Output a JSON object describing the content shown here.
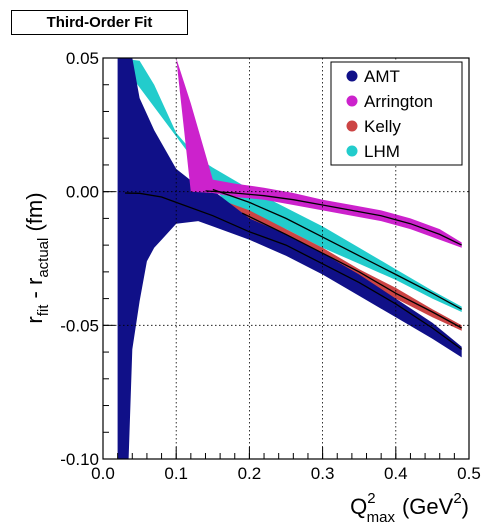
{
  "chart_data": {
    "type": "line",
    "title": "Third-Order Fit",
    "xlabel": {
      "main": "Q",
      "sup": "2",
      "sub": "max",
      "unit": "(GeV",
      "unit_sup": "2",
      "unit_close": ")"
    },
    "ylabel": {
      "r": "r",
      "sub1": "fit",
      "mid": " - r",
      "sub2": "actual",
      "unit": " (fm)"
    },
    "xlim": [
      0,
      0.5
    ],
    "ylim": [
      -0.1,
      0.05
    ],
    "xticks": [
      {
        "v": 0.0,
        "label": "0.0"
      },
      {
        "v": 0.1,
        "label": "0.1"
      },
      {
        "v": 0.2,
        "label": "0.2"
      },
      {
        "v": 0.3,
        "label": "0.3"
      },
      {
        "v": 0.4,
        "label": "0.4"
      },
      {
        "v": 0.5,
        "label": "0.5"
      }
    ],
    "yticks": [
      {
        "v": -0.1,
        "label": "-0.10"
      },
      {
        "v": -0.05,
        "label": "-0.05"
      },
      {
        "v": 0.0,
        "label": "0.00"
      },
      {
        "v": 0.05,
        "label": "0.05"
      }
    ],
    "grid": true,
    "legend_position": "top-right",
    "series": [
      {
        "name": "LHM",
        "color": "#22cccc",
        "center": [
          [
            0.15,
            0.0008
          ],
          [
            0.2,
            -0.004
          ],
          [
            0.25,
            -0.01
          ],
          [
            0.3,
            -0.017
          ],
          [
            0.35,
            -0.024
          ],
          [
            0.4,
            -0.031
          ],
          [
            0.45,
            -0.038
          ],
          [
            0.49,
            -0.044
          ]
        ],
        "upper": [
          [
            0.02,
            0.05
          ],
          [
            0.05,
            0.049
          ],
          [
            0.07,
            0.04
          ],
          [
            0.1,
            0.022
          ],
          [
            0.13,
            0.0125
          ],
          [
            0.15,
            0.009
          ],
          [
            0.2,
            0.001
          ],
          [
            0.25,
            -0.006
          ],
          [
            0.3,
            -0.013
          ],
          [
            0.35,
            -0.021
          ],
          [
            0.4,
            -0.029
          ],
          [
            0.45,
            -0.037
          ],
          [
            0.49,
            -0.043
          ]
        ],
        "lower": [
          [
            0.49,
            -0.045
          ],
          [
            0.45,
            -0.04
          ],
          [
            0.4,
            -0.033
          ],
          [
            0.35,
            -0.027
          ],
          [
            0.3,
            -0.021
          ],
          [
            0.25,
            -0.014
          ],
          [
            0.2,
            -0.008
          ],
          [
            0.17,
            -0.005
          ]
        ]
      },
      {
        "name": "Kelly",
        "color": "#cc4444",
        "center": [
          [
            0.19,
            -0.008
          ],
          [
            0.25,
            -0.016
          ],
          [
            0.3,
            -0.023
          ],
          [
            0.35,
            -0.03
          ],
          [
            0.4,
            -0.038
          ],
          [
            0.45,
            -0.045
          ],
          [
            0.49,
            -0.051
          ]
        ],
        "upper": [
          [
            0.15,
            -0.002
          ],
          [
            0.2,
            -0.007
          ],
          [
            0.25,
            -0.014
          ],
          [
            0.3,
            -0.021
          ],
          [
            0.35,
            -0.029
          ],
          [
            0.4,
            -0.036
          ],
          [
            0.45,
            -0.044
          ],
          [
            0.49,
            -0.05
          ]
        ],
        "lower": [
          [
            0.49,
            -0.052
          ],
          [
            0.45,
            -0.047
          ],
          [
            0.4,
            -0.04
          ],
          [
            0.35,
            -0.033
          ],
          [
            0.3,
            -0.026
          ],
          [
            0.25,
            -0.019
          ],
          [
            0.2,
            -0.013
          ],
          [
            0.15,
            -0.009
          ]
        ]
      },
      {
        "name": "AMT",
        "color": "#101088",
        "center": [
          [
            0.03,
            -0.0005
          ],
          [
            0.05,
            -0.0006
          ],
          [
            0.08,
            -0.002
          ],
          [
            0.1,
            -0.004
          ],
          [
            0.15,
            -0.009
          ],
          [
            0.2,
            -0.015
          ],
          [
            0.25,
            -0.02
          ],
          [
            0.3,
            -0.027
          ],
          [
            0.35,
            -0.034
          ],
          [
            0.4,
            -0.042
          ],
          [
            0.45,
            -0.051
          ],
          [
            0.49,
            -0.059
          ]
        ],
        "upper": [
          [
            0.02,
            0.05
          ],
          [
            0.04,
            0.05
          ],
          [
            0.05,
            0.035
          ],
          [
            0.07,
            0.023
          ],
          [
            0.1,
            0.0085
          ],
          [
            0.13,
            0.002
          ],
          [
            0.15,
            0.0005
          ],
          [
            0.2,
            -0.01
          ],
          [
            0.25,
            -0.016
          ],
          [
            0.3,
            -0.023
          ],
          [
            0.35,
            -0.031
          ],
          [
            0.4,
            -0.04
          ],
          [
            0.45,
            -0.049
          ],
          [
            0.49,
            -0.058
          ]
        ],
        "lower": [
          [
            0.49,
            -0.062
          ],
          [
            0.45,
            -0.055
          ],
          [
            0.4,
            -0.047
          ],
          [
            0.35,
            -0.039
          ],
          [
            0.3,
            -0.031
          ],
          [
            0.25,
            -0.024
          ],
          [
            0.2,
            -0.018
          ],
          [
            0.15,
            -0.013
          ],
          [
            0.13,
            -0.011
          ],
          [
            0.1,
            -0.012
          ],
          [
            0.08,
            -0.018
          ],
          [
            0.07,
            -0.021
          ],
          [
            0.06,
            -0.026
          ],
          [
            0.05,
            -0.041
          ],
          [
            0.04,
            -0.059
          ],
          [
            0.035,
            -0.1
          ],
          [
            0.02,
            -0.1
          ]
        ]
      },
      {
        "name": "Arrington",
        "color": "#cc22cc",
        "center": [
          [
            0.14,
            0.0003
          ],
          [
            0.18,
            -0.0005
          ],
          [
            0.22,
            -0.0015
          ],
          [
            0.26,
            -0.003
          ],
          [
            0.3,
            -0.005
          ],
          [
            0.34,
            -0.007
          ],
          [
            0.38,
            -0.009
          ],
          [
            0.42,
            -0.012
          ],
          [
            0.46,
            -0.016
          ],
          [
            0.49,
            -0.02
          ]
        ],
        "upper": [
          [
            0.1,
            0.05
          ],
          [
            0.12,
            0.033
          ],
          [
            0.15,
            0.0045
          ],
          [
            0.18,
            0.003
          ],
          [
            0.22,
            0.0015
          ],
          [
            0.26,
            -0.0005
          ],
          [
            0.3,
            -0.003
          ],
          [
            0.34,
            -0.005
          ],
          [
            0.38,
            -0.007
          ],
          [
            0.42,
            -0.01
          ],
          [
            0.46,
            -0.014
          ],
          [
            0.49,
            -0.019
          ]
        ],
        "lower": [
          [
            0.49,
            -0.021
          ],
          [
            0.46,
            -0.018
          ],
          [
            0.42,
            -0.014
          ],
          [
            0.38,
            -0.011
          ],
          [
            0.34,
            -0.009
          ],
          [
            0.3,
            -0.007
          ],
          [
            0.26,
            -0.005
          ],
          [
            0.22,
            -0.003
          ],
          [
            0.18,
            -0.002
          ],
          [
            0.15,
            -0.0005
          ],
          [
            0.12,
            0.0
          ]
        ]
      }
    ],
    "legend": [
      {
        "name": "AMT",
        "color": "#101088"
      },
      {
        "name": "Arrington",
        "color": "#cc22cc"
      },
      {
        "name": "Kelly",
        "color": "#cc4444"
      },
      {
        "name": "LHM",
        "color": "#22cccc"
      }
    ]
  }
}
